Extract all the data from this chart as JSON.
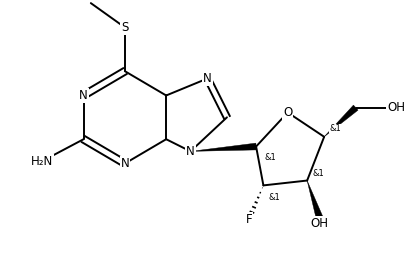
{
  "bg_color": "#ffffff",
  "line_color": "#000000",
  "line_width": 1.4,
  "font_size": 8.5,
  "figsize": [
    4.15,
    2.59
  ],
  "dpi": 100,
  "xlim": [
    0.0,
    8.5
  ],
  "ylim": [
    0.5,
    5.8
  ]
}
